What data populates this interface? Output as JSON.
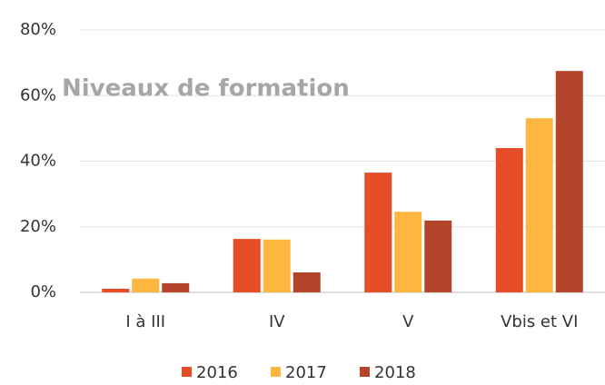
{
  "chart_data": {
    "type": "bar",
    "title": "Niveaux de formation",
    "categories": [
      "I à III",
      "IV",
      "V",
      "Vbis et VI"
    ],
    "series": [
      {
        "name": "2016",
        "color": "#e44d26",
        "values": [
          1.1,
          16.3,
          36.5,
          44
        ]
      },
      {
        "name": "2017",
        "color": "#fdb741",
        "values": [
          4.2,
          16.1,
          24.6,
          53.1
        ]
      },
      {
        "name": "2018",
        "color": "#b5452a",
        "values": [
          2.8,
          6.1,
          21.9,
          67.5
        ]
      }
    ],
    "ylim": [
      0,
      80
    ],
    "yticks": [
      {
        "value": 0,
        "label": "0%"
      },
      {
        "value": 20,
        "label": "20%"
      },
      {
        "value": 40,
        "label": "40%"
      },
      {
        "value": 60,
        "label": "60%"
      },
      {
        "value": 80,
        "label": "80%"
      }
    ],
    "grid": true,
    "legend": "bottom"
  }
}
